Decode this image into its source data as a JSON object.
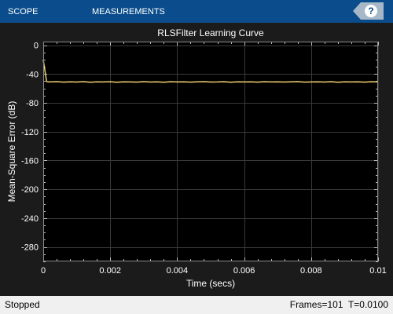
{
  "toolstrip": {
    "tabs": [
      {
        "label": "SCOPE"
      },
      {
        "label": "MEASUREMENTS"
      }
    ],
    "help_label": "?"
  },
  "colors": {
    "toolstrip_bg": "#0b4d8c",
    "figure_bg": "#1b1b1b",
    "axes_bg": "#000000",
    "grid": "#3a3a3a",
    "text": "#ffffff",
    "line": "#f0d070"
  },
  "chart_data": {
    "type": "line",
    "title": "RLSFilter Learning Curve",
    "xlabel": "Time (secs)",
    "ylabel": "Mean-Square Error (dB)",
    "xlim": [
      0,
      0.01
    ],
    "ylim": [
      -300,
      5
    ],
    "xticks": [
      0,
      0.002,
      0.004,
      0.006,
      0.008,
      0.01
    ],
    "xtick_labels": [
      "0",
      "0.002",
      "0.004",
      "0.006",
      "0.008",
      "0.01"
    ],
    "yticks": [
      0,
      -40,
      -80,
      -120,
      -160,
      -200,
      -240,
      -280
    ],
    "ytick_labels": [
      "0",
      "-40",
      "-80",
      "-120",
      "-160",
      "-200",
      "-240",
      "-280"
    ],
    "grid": true,
    "series": [
      {
        "color": "#f0d070",
        "x": [
          0,
          0.0001,
          0.0002,
          0.0004,
          0.0006,
          0.0008,
          0.001,
          0.0012,
          0.0014,
          0.0016,
          0.0018,
          0.002,
          0.0022,
          0.0024,
          0.0026,
          0.0028,
          0.003,
          0.0032,
          0.0034,
          0.0036,
          0.0038,
          0.004,
          0.0042,
          0.0044,
          0.0046,
          0.0048,
          0.005,
          0.0052,
          0.0054,
          0.0056,
          0.0058,
          0.006,
          0.0062,
          0.0064,
          0.0066,
          0.0068,
          0.007,
          0.0072,
          0.0074,
          0.0076,
          0.0078,
          0.008,
          0.0082,
          0.0084,
          0.0086,
          0.0088,
          0.009,
          0.0092,
          0.0094,
          0.0096,
          0.0098,
          0.01
        ],
        "y": [
          -20,
          -50.5,
          -51,
          -50.6,
          -51.2,
          -50.8,
          -51.1,
          -50.5,
          -51.3,
          -50.9,
          -51.0,
          -50.7,
          -51.4,
          -50.8,
          -51.0,
          -51.2,
          -50.6,
          -51.1,
          -50.9,
          -51.3,
          -50.7,
          -51.0,
          -50.8,
          -51.2,
          -50.9,
          -50.6,
          -51.1,
          -51.0,
          -50.7,
          -51.3,
          -50.8,
          -51.0,
          -50.9,
          -51.2,
          -50.7,
          -51.0,
          -50.8,
          -51.1,
          -50.9,
          -50.6,
          -51.2,
          -51.0,
          -50.8,
          -51.1,
          -50.7,
          -51.3,
          -50.9,
          -51.0,
          -50.8,
          -51.2,
          -50.7,
          -51.0
        ]
      }
    ]
  },
  "status": {
    "state": "Stopped",
    "frames": "Frames=101  T=0.0100"
  }
}
